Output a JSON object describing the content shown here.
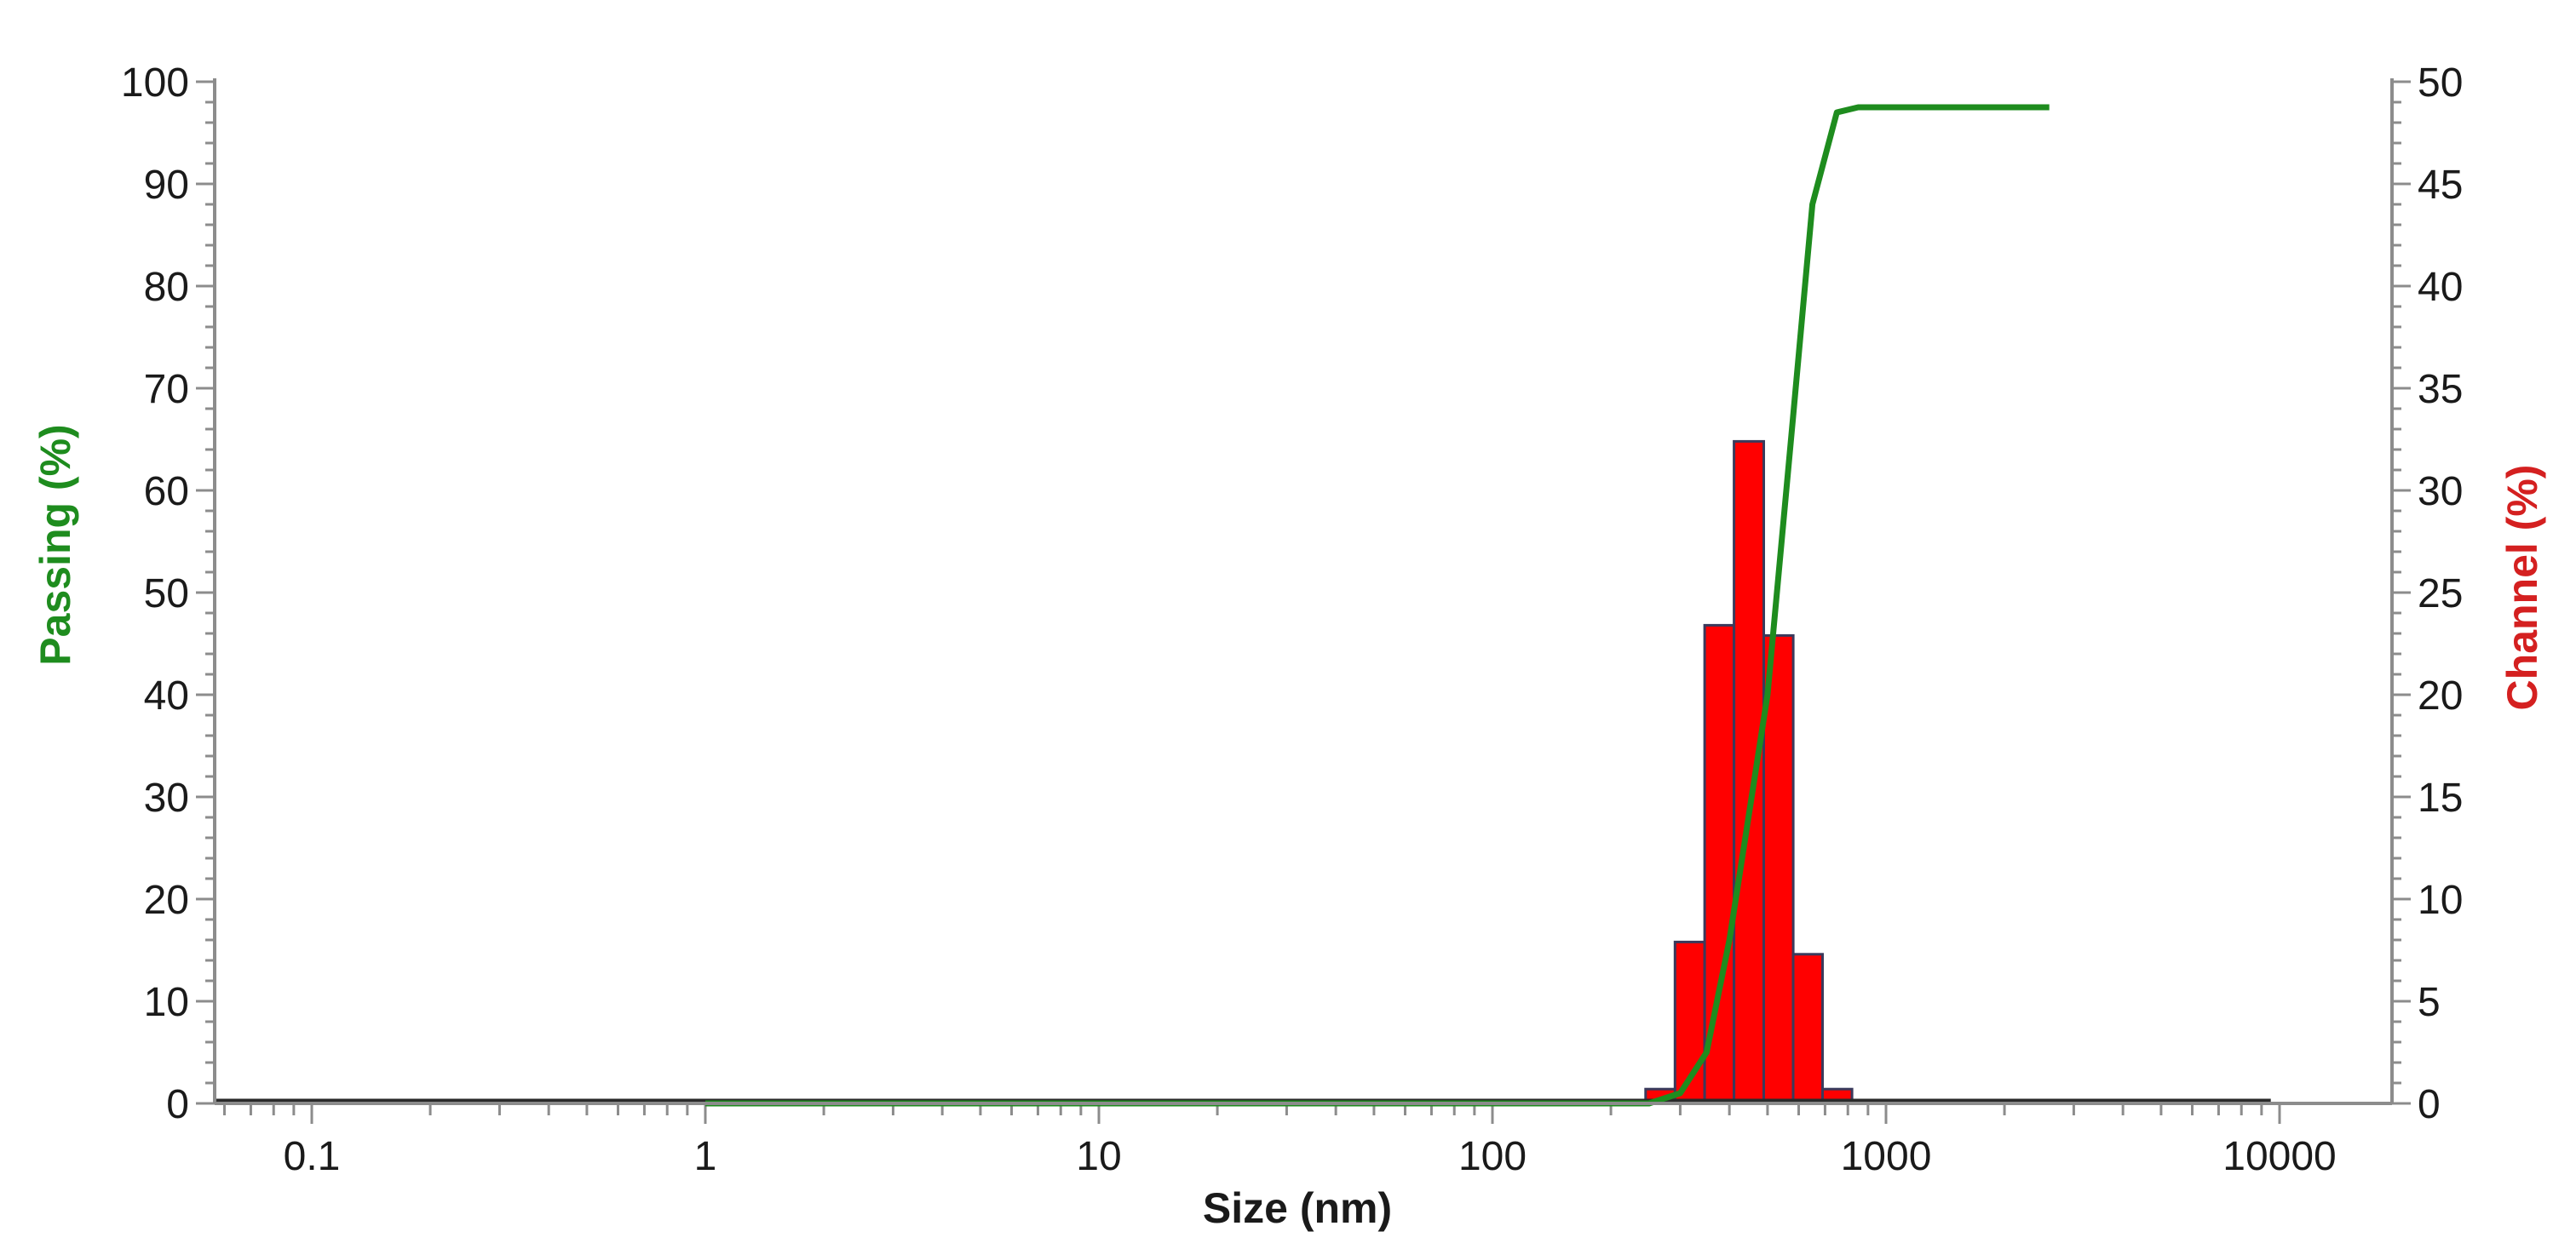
{
  "chart_data": {
    "type": "bar",
    "xlabel": "Size (nm)",
    "ylabel_left": "Passing (%)",
    "ylabel_right": "Channel (%)",
    "x_scale": "log",
    "xlim": [
      0.06,
      15000
    ],
    "ylim_left": [
      0,
      100
    ],
    "ylim_right": [
      0,
      50
    ],
    "x_ticks": [
      0.1,
      1,
      10,
      100,
      1000,
      10000
    ],
    "x_tick_labels": [
      "0.1",
      "1",
      "10",
      "100",
      "1000",
      "10000"
    ],
    "y_left_ticks": [
      0,
      10,
      20,
      30,
      40,
      50,
      60,
      70,
      80,
      90,
      100
    ],
    "y_left_tick_labels": [
      "0",
      "10",
      "20",
      "30",
      "40",
      "50",
      "60",
      "70",
      "80",
      "90",
      "100"
    ],
    "y_right_ticks": [
      0,
      5,
      10,
      15,
      20,
      25,
      30,
      35,
      40,
      45,
      50
    ],
    "y_right_tick_labels": [
      "0",
      "5",
      "10",
      "15",
      "20",
      "25",
      "30",
      "35",
      "40",
      "45",
      "50"
    ],
    "grid": false,
    "colors": {
      "passing": "#1e8c1e",
      "channel": "#ff0000",
      "bar_edge": "#3a3a5c",
      "axis": "#8c8c8c",
      "text": "#1a1a1a"
    },
    "series": [
      {
        "name": "Passing (%)",
        "type": "line",
        "axis": "left",
        "x": [
          1,
          10,
          100,
          250,
          300,
          350,
          400,
          500,
          580,
          650,
          750,
          850,
          1000,
          2600
        ],
        "y": [
          0,
          0,
          0,
          0,
          1,
          5,
          16,
          40,
          67,
          88,
          97,
          97.5,
          97.5,
          97.5
        ]
      },
      {
        "name": "Channel (%)",
        "type": "bar",
        "axis": "right",
        "bins": [
          {
            "x0": 245,
            "x1": 291,
            "value": 0.7
          },
          {
            "x0": 291,
            "x1": 346,
            "value": 7.9
          },
          {
            "x0": 346,
            "x1": 411,
            "value": 23.4
          },
          {
            "x0": 411,
            "x1": 489,
            "value": 32.4
          },
          {
            "x0": 489,
            "x1": 581,
            "value": 22.9
          },
          {
            "x0": 581,
            "x1": 690,
            "value": 7.3
          },
          {
            "x0": 690,
            "x1": 820,
            "value": 0.7
          }
        ]
      }
    ]
  }
}
